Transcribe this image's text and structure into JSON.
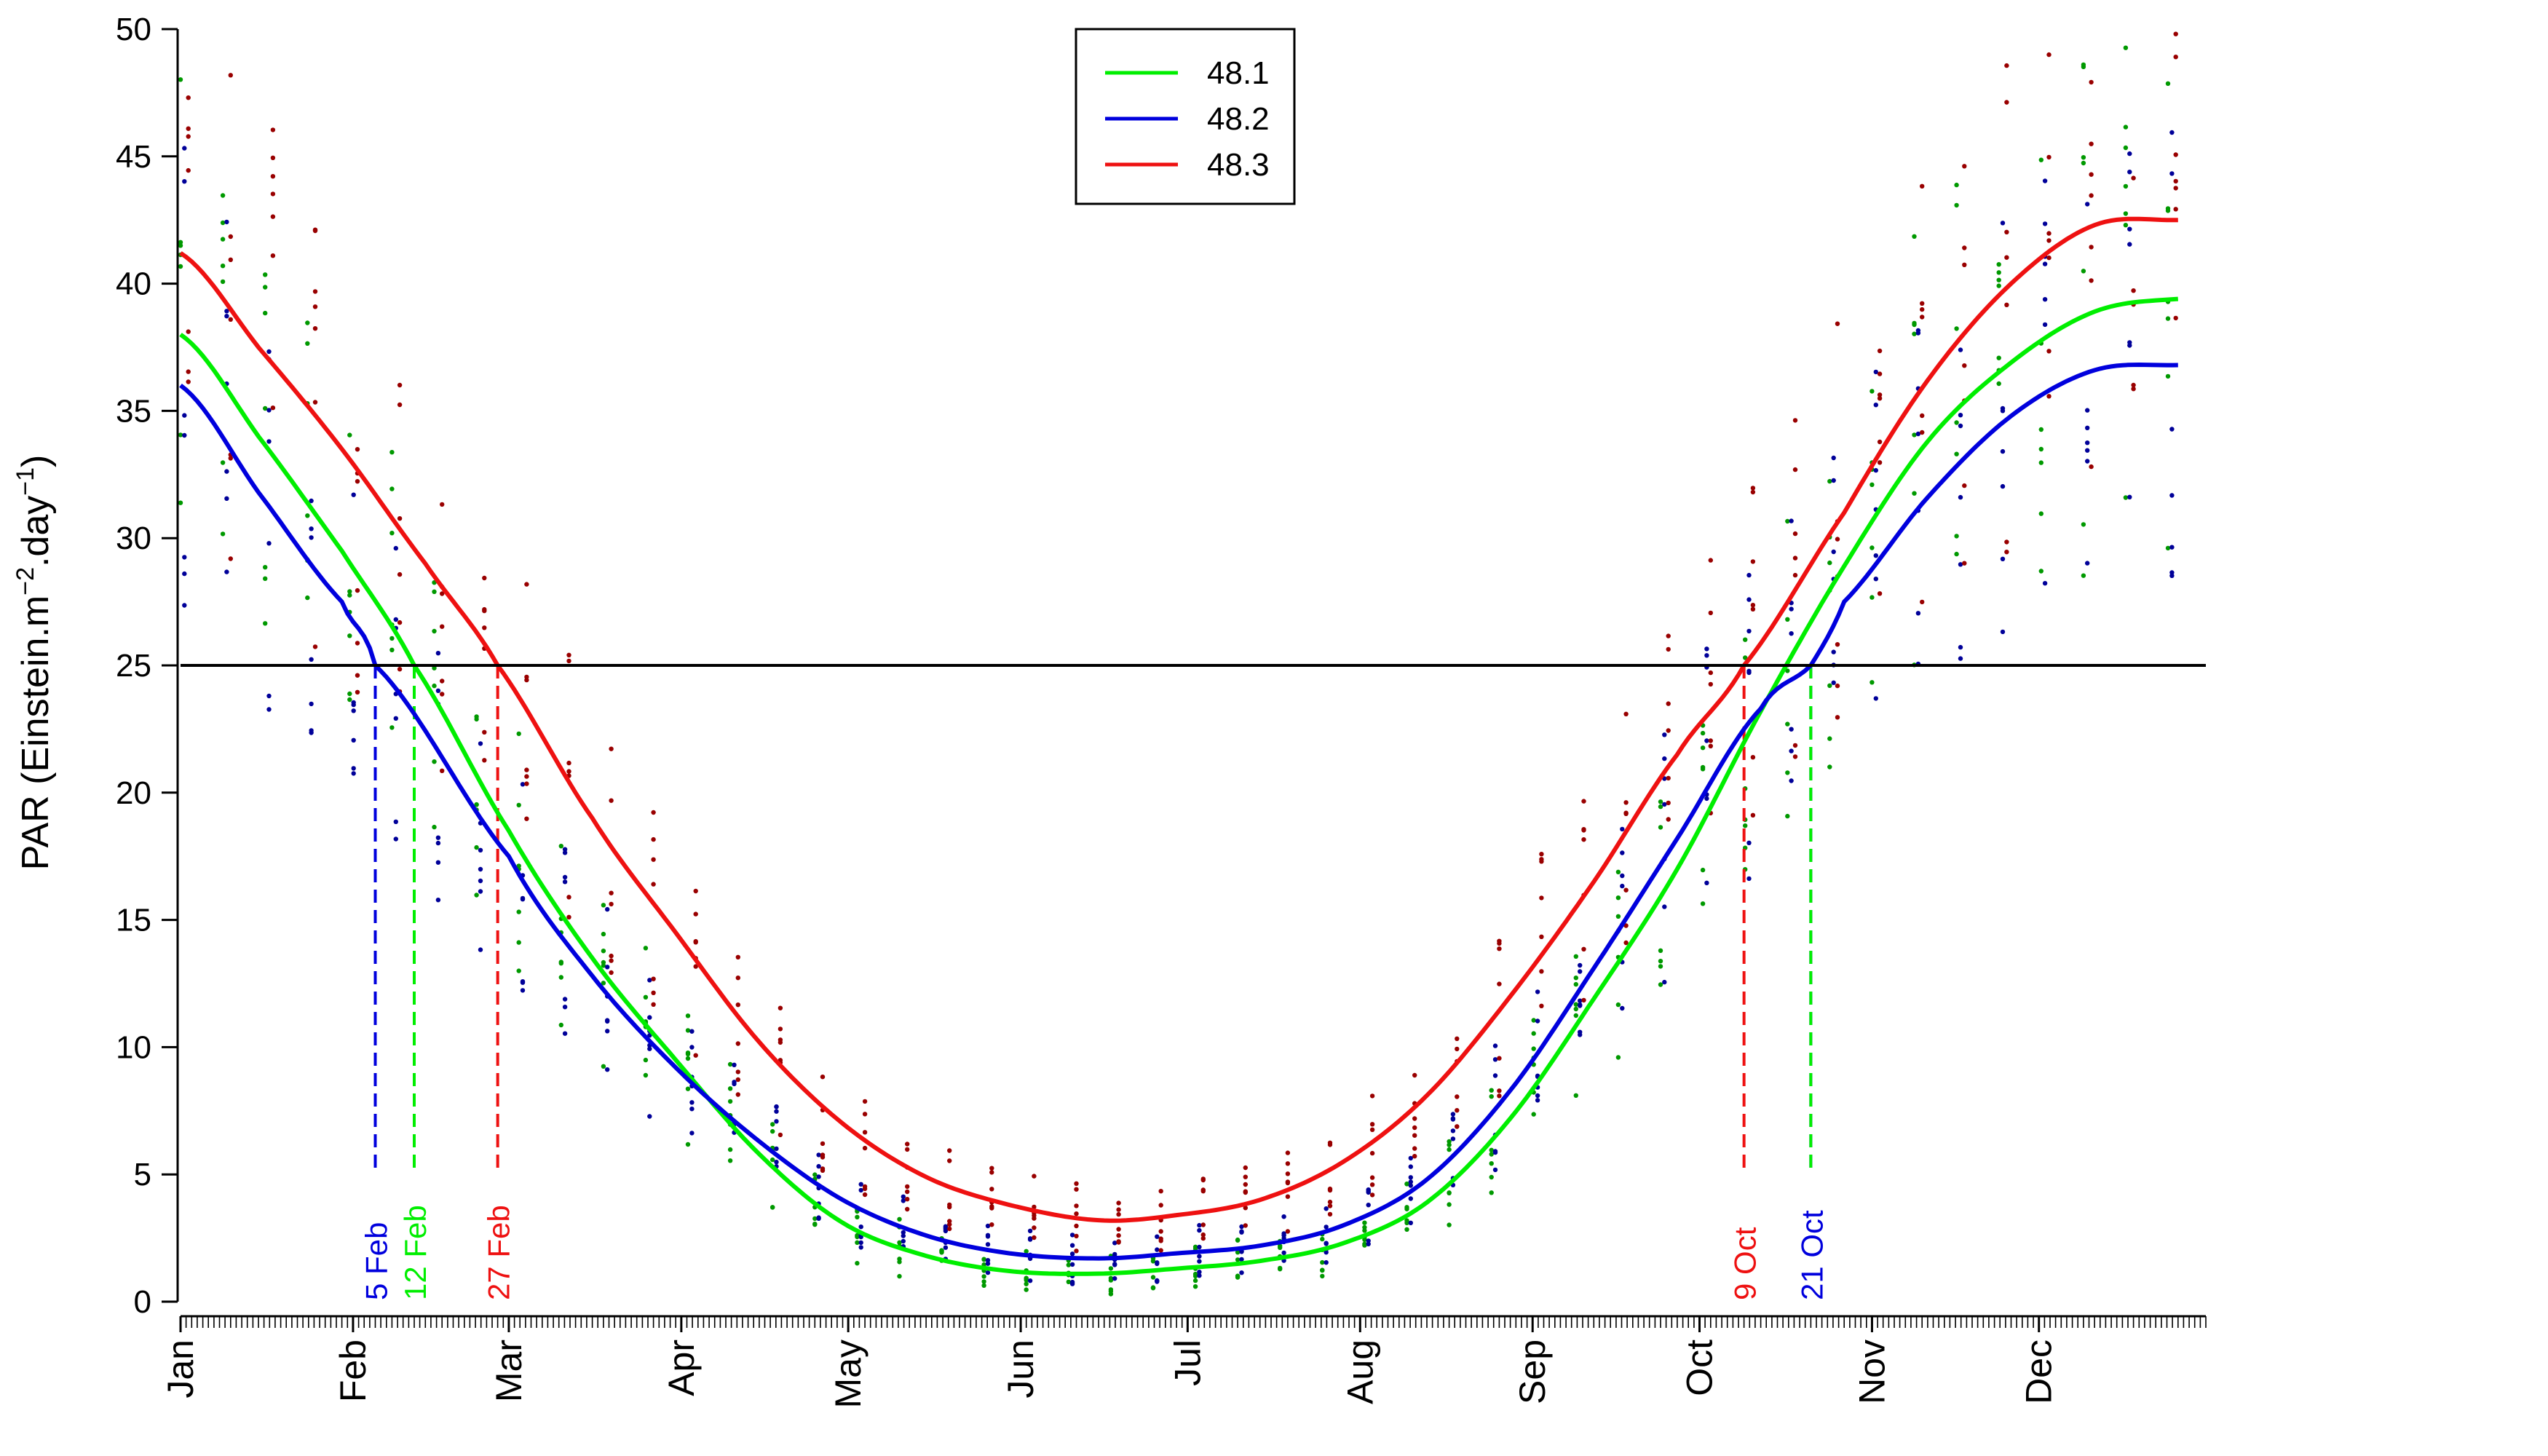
{
  "chart_data": {
    "type": "line",
    "title": "",
    "ylabel": {
      "base": "PAR (Einstein.m",
      "sup1": "−2",
      "mid": ".day",
      "sup2": "−1",
      "end": ")"
    },
    "xlabel": "",
    "ylim": [
      0,
      50
    ],
    "xlim": [
      1,
      365
    ],
    "y_ticks": [
      "0",
      "5",
      "10",
      "15",
      "20",
      "25",
      "30",
      "35",
      "40",
      "45",
      "50"
    ],
    "month_ticks": [
      {
        "label": "Jan",
        "day": 1
      },
      {
        "label": "Feb",
        "day": 32
      },
      {
        "label": "Mar",
        "day": 60
      },
      {
        "label": "Apr",
        "day": 91
      },
      {
        "label": "May",
        "day": 121
      },
      {
        "label": "Jun",
        "day": 152
      },
      {
        "label": "Jul",
        "day": 182
      },
      {
        "label": "Aug",
        "day": 213
      },
      {
        "label": "Sep",
        "day": 244
      },
      {
        "label": "Oct",
        "day": 274
      },
      {
        "label": "Nov",
        "day": 305
      },
      {
        "label": "Dec",
        "day": 335
      }
    ],
    "threshold": 25,
    "series": [
      {
        "name": "48.1",
        "color": "#00ee00",
        "dot_color": "#009900",
        "x": [
          1,
          15,
          30,
          43,
          60,
          75,
          90,
          105,
          120,
          135,
          150,
          166,
          180,
          195,
          210,
          225,
          240,
          255,
          270,
          285,
          300,
          315,
          330,
          345,
          360
        ],
        "values": [
          38.0,
          34.0,
          29.5,
          25.0,
          18.5,
          13.5,
          9.5,
          5.8,
          3.1,
          1.8,
          1.2,
          1.1,
          1.3,
          1.6,
          2.3,
          3.9,
          7.2,
          11.9,
          17.0,
          23.2,
          28.9,
          33.8,
          36.9,
          38.9,
          39.4
        ]
      },
      {
        "name": "48.2",
        "color": "#0000dd",
        "dot_color": "#000099",
        "x": [
          1,
          15,
          30,
          36,
          60,
          75,
          90,
          105,
          120,
          135,
          150,
          166,
          180,
          195,
          210,
          225,
          240,
          255,
          270,
          285,
          294,
          300,
          315,
          330,
          345,
          360
        ],
        "values": [
          36.0,
          31.8,
          27.5,
          25.0,
          17.5,
          12.8,
          9.2,
          6.3,
          4.0,
          2.6,
          1.9,
          1.7,
          1.9,
          2.2,
          3.0,
          4.8,
          8.3,
          13.1,
          18.2,
          23.3,
          25.0,
          27.5,
          31.6,
          34.8,
          36.6,
          36.8
        ]
      },
      {
        "name": "48.3",
        "color": "#ee1111",
        "dot_color": "#990000",
        "x": [
          1,
          15,
          30,
          45,
          58,
          75,
          90,
          105,
          120,
          135,
          150,
          166,
          180,
          195,
          210,
          225,
          240,
          255,
          270,
          282,
          300,
          315,
          330,
          345,
          360
        ],
        "values": [
          41.2,
          37.5,
          33.5,
          29.0,
          25.0,
          19.0,
          14.5,
          10.2,
          7.0,
          4.9,
          3.8,
          3.2,
          3.4,
          4.0,
          5.5,
          8.1,
          12.0,
          16.5,
          21.5,
          25.0,
          31.0,
          36.2,
          40.0,
          42.3,
          42.5
        ]
      }
    ],
    "crossings": [
      {
        "series": "48.2",
        "day": 36,
        "label": "5 Feb",
        "color": "#0000dd"
      },
      {
        "series": "48.1",
        "day": 43,
        "label": "12 Feb",
        "color": "#00ee00"
      },
      {
        "series": "48.3",
        "day": 58,
        "label": "27 Feb",
        "color": "#ee1111"
      },
      {
        "series": "48.3",
        "day": 282,
        "label": "9 Oct",
        "color": "#ee1111"
      },
      {
        "series": "48.2",
        "day": 294,
        "label": "21 Oct",
        "color": "#0000dd"
      },
      {
        "series": "48.1",
        "day": 294,
        "label": "",
        "color": "#00ee00"
      }
    ],
    "legend": {
      "position": "top-center",
      "entries": [
        "48.1",
        "48.2",
        "48.3"
      ]
    },
    "grid": false
  }
}
